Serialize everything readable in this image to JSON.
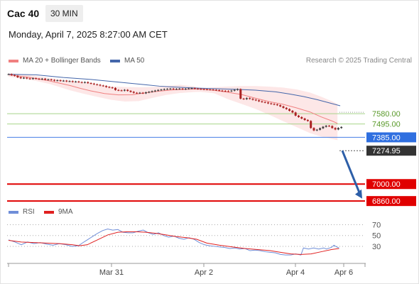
{
  "header": {
    "symbol": "Cac 40",
    "timeframe": "30 MIN",
    "datetime": "Monday, April 7, 2025 8:27:00 AM CET"
  },
  "credit": "Research © 2025 Trading Central",
  "legend": {
    "ma20": "MA 20 + Bollinger Bands",
    "ma50": "MA 50",
    "rsi": "RSI",
    "ma9": "9MA"
  },
  "colors": {
    "ma20": "#f08080",
    "ma50": "#4466aa",
    "band": "#fde3e3",
    "support_lines": "#e00000",
    "resistance_lines": "#a8d48a",
    "pivot": "#5b8de8",
    "rsi": "#6f8ed8",
    "ma9": "#e02020",
    "candle_up": "#3a3a3a",
    "candle_down": "#aa2222",
    "arrow": "#2d5fa8"
  },
  "chart_data": [
    {
      "type": "candlestick",
      "title": "Cac 40",
      "x_tick_labels": [
        "Mar 31",
        "Apr 2",
        "Apr 4",
        "Apr 6"
      ],
      "ylim": [
        6820,
        7920
      ],
      "series": [
        {
          "name": "Price",
          "close": [
            7905,
            7898,
            7892,
            7880,
            7872,
            7876,
            7870,
            7866,
            7872,
            7868,
            7864,
            7868,
            7860,
            7862,
            7858,
            7852,
            7855,
            7850,
            7852,
            7846,
            7848,
            7842,
            7845,
            7840,
            7836,
            7840,
            7832,
            7828,
            7822,
            7818,
            7812,
            7808,
            7800,
            7796,
            7792,
            7775,
            7772,
            7770,
            7776,
            7768,
            7760,
            7752,
            7750,
            7752,
            7748,
            7755,
            7760,
            7765,
            7770,
            7775,
            7778,
            7782,
            7784,
            7786,
            7783,
            7784,
            7786,
            7782,
            7785,
            7788,
            7790,
            7786,
            7784,
            7782,
            7780,
            7779,
            7778,
            7776,
            7774,
            7770,
            7768,
            7767,
            7765,
            7770,
            7776,
            7782,
            7704,
            7700,
            7708,
            7702,
            7695,
            7690,
            7682,
            7676,
            7672,
            7665,
            7660,
            7656,
            7650,
            7640,
            7628,
            7618,
            7604,
            7590,
            7564,
            7552,
            7540,
            7528,
            7520,
            7462,
            7442,
            7448,
            7460,
            7472,
            7480,
            7478,
            7462,
            7450,
            7462,
            7470
          ]
        },
        {
          "name": "MA 20",
          "values": [
            [
              0,
              7900
            ],
            [
              15,
              7880
            ],
            [
              30,
              7850
            ],
            [
              45,
              7812
            ],
            [
              52,
              7790
            ],
            [
              60,
              7768
            ],
            [
              70,
              7746
            ],
            [
              80,
              7735
            ],
            [
              90,
              7736
            ],
            [
              100,
              7752
            ],
            [
              110,
              7766
            ],
            [
              120,
              7776
            ],
            [
              130,
              7781
            ],
            [
              140,
              7784
            ],
            [
              150,
              7772
            ],
            [
              160,
              7756
            ],
            [
              170,
              7738
            ],
            [
              180,
              7708
            ],
            [
              190,
              7680
            ],
            [
              200,
              7658
            ],
            [
              210,
              7628
            ],
            [
              220,
              7594
            ],
            [
              228,
              7554
            ],
            [
              236,
              7520
            ],
            [
              240,
              7500
            ]
          ]
        },
        {
          "name": "Bollinger Upper",
          "values": [
            [
              0,
              7915
            ],
            [
              15,
              7898
            ],
            [
              30,
              7875
            ],
            [
              45,
              7852
            ],
            [
              55,
              7836
            ],
            [
              65,
              7818
            ],
            [
              75,
              7805
            ],
            [
              85,
              7800
            ],
            [
              95,
              7798
            ],
            [
              105,
              7800
            ],
            [
              115,
              7808
            ],
            [
              125,
              7818
            ],
            [
              135,
              7806
            ],
            [
              140,
              7790
            ],
            [
              150,
              7798
            ],
            [
              160,
              7804
            ],
            [
              170,
              7808
            ],
            [
              180,
              7808
            ],
            [
              190,
              7803
            ],
            [
              200,
              7796
            ],
            [
              210,
              7780
            ],
            [
              220,
              7754
            ],
            [
              228,
              7720
            ],
            [
              236,
              7682
            ],
            [
              240,
              7660
            ]
          ]
        },
        {
          "name": "Bollinger Lower",
          "values": [
            [
              0,
              7885
            ],
            [
              15,
              7862
            ],
            [
              30,
              7825
            ],
            [
              45,
              7772
            ],
            [
              55,
              7744
            ],
            [
              65,
              7718
            ],
            [
              75,
              7694
            ],
            [
              85,
              7680
            ],
            [
              95,
              7684
            ],
            [
              105,
              7710
            ],
            [
              115,
              7734
            ],
            [
              125,
              7750
            ],
            [
              135,
              7758
            ],
            [
              140,
              7760
            ],
            [
              150,
              7748
            ],
            [
              160,
              7700
            ],
            [
              170,
              7660
            ],
            [
              180,
              7620
            ],
            [
              190,
              7572
            ],
            [
              200,
              7520
            ],
            [
              210,
              7470
            ],
            [
              220,
              7420
            ],
            [
              228,
              7392
            ],
            [
              236,
              7372
            ],
            [
              240,
              7362
            ]
          ]
        },
        {
          "name": "MA 50",
          "values": [
            [
              0,
              7905
            ],
            [
              20,
              7900
            ],
            [
              40,
              7878
            ],
            [
              60,
              7862
            ],
            [
              80,
              7840
            ],
            [
              100,
              7818
            ],
            [
              110,
              7807
            ],
            [
              120,
              7800
            ],
            [
              135,
              7792
            ],
            [
              150,
              7786
            ],
            [
              165,
              7781
            ],
            [
              180,
              7774
            ],
            [
              195,
              7760
            ],
            [
              205,
              7742
            ],
            [
              215,
              7722
            ],
            [
              225,
              7696
            ],
            [
              235,
              7666
            ],
            [
              242,
              7645
            ]
          ]
        }
      ],
      "levels": [
        {
          "label": "7580.00",
          "value": 7580,
          "kind": "resistance"
        },
        {
          "label": "7495.00",
          "value": 7495,
          "kind": "resistance"
        },
        {
          "label": "7385.00",
          "value": 7385,
          "kind": "pivot"
        },
        {
          "label": "7274.95",
          "value": 7274.95,
          "kind": "last"
        },
        {
          "label": "7000.00",
          "value": 7000,
          "kind": "support"
        },
        {
          "label": "6860.00",
          "value": 6860,
          "kind": "support"
        }
      ],
      "forecast_arrow": {
        "from": 7274.95,
        "to": 6880
      }
    },
    {
      "type": "line",
      "title": "RSI",
      "ylim": [
        5,
        85
      ],
      "y_ticks": [
        70,
        50,
        30
      ],
      "series": [
        {
          "name": "RSI",
          "values": [
            [
              0,
              42
            ],
            [
              5,
              38
            ],
            [
              10,
              33
            ],
            [
              15,
              38
            ],
            [
              20,
              35
            ],
            [
              25,
              37
            ],
            [
              30,
              34
            ],
            [
              35,
              32
            ],
            [
              40,
              35
            ],
            [
              45,
              33
            ],
            [
              50,
              30
            ],
            [
              55,
              31
            ],
            [
              58,
              36
            ],
            [
              62,
              42
            ],
            [
              66,
              48
            ],
            [
              70,
              54
            ],
            [
              74,
              59
            ],
            [
              78,
              62
            ],
            [
              82,
              60
            ],
            [
              86,
              61
            ],
            [
              90,
              56
            ],
            [
              94,
              55
            ],
            [
              98,
              55
            ],
            [
              102,
              58
            ],
            [
              106,
              60
            ],
            [
              110,
              55
            ],
            [
              114,
              52
            ],
            [
              118,
              55
            ],
            [
              122,
              50
            ],
            [
              126,
              47
            ],
            [
              130,
              49
            ],
            [
              134,
              45
            ],
            [
              138,
              43
            ],
            [
              142,
              46
            ],
            [
              146,
              43
            ],
            [
              150,
              37
            ],
            [
              154,
              33
            ],
            [
              158,
              31
            ],
            [
              162,
              30
            ],
            [
              166,
              29
            ],
            [
              170,
              28
            ],
            [
              174,
              26
            ],
            [
              178,
              27
            ],
            [
              182,
              25
            ],
            [
              186,
              26
            ],
            [
              190,
              22
            ],
            [
              194,
              23
            ],
            [
              198,
              22
            ],
            [
              202,
              20
            ],
            [
              206,
              19
            ],
            [
              210,
              18
            ],
            [
              214,
              15
            ],
            [
              218,
              14
            ],
            [
              222,
              14
            ],
            [
              226,
              16
            ],
            [
              230,
              14
            ],
            [
              232,
              27
            ],
            [
              236,
              25
            ],
            [
              240,
              27
            ],
            [
              244,
              25
            ],
            [
              248,
              27
            ],
            [
              250,
              25
            ],
            [
              254,
              28
            ],
            [
              256,
              32
            ],
            [
              258,
              29
            ],
            [
              260,
              27
            ]
          ]
        },
        {
          "name": "9MA",
          "values": [
            [
              0,
              41
            ],
            [
              10,
              38
            ],
            [
              20,
              37
            ],
            [
              30,
              36
            ],
            [
              40,
              35
            ],
            [
              50,
              33
            ],
            [
              56,
              31
            ],
            [
              62,
              33
            ],
            [
              70,
              42
            ],
            [
              78,
              51
            ],
            [
              86,
              56
            ],
            [
              94,
              57
            ],
            [
              100,
              57
            ],
            [
              108,
              56
            ],
            [
              116,
              54
            ],
            [
              124,
              51
            ],
            [
              132,
              48
            ],
            [
              140,
              46
            ],
            [
              148,
              43
            ],
            [
              156,
              36
            ],
            [
              166,
              32
            ],
            [
              176,
              29
            ],
            [
              186,
              26
            ],
            [
              196,
              24
            ],
            [
              206,
              22
            ],
            [
              214,
              19
            ],
            [
              222,
              16
            ],
            [
              230,
              15
            ],
            [
              238,
              16
            ],
            [
              246,
              20
            ],
            [
              254,
              24
            ],
            [
              260,
              26
            ]
          ]
        }
      ]
    }
  ]
}
